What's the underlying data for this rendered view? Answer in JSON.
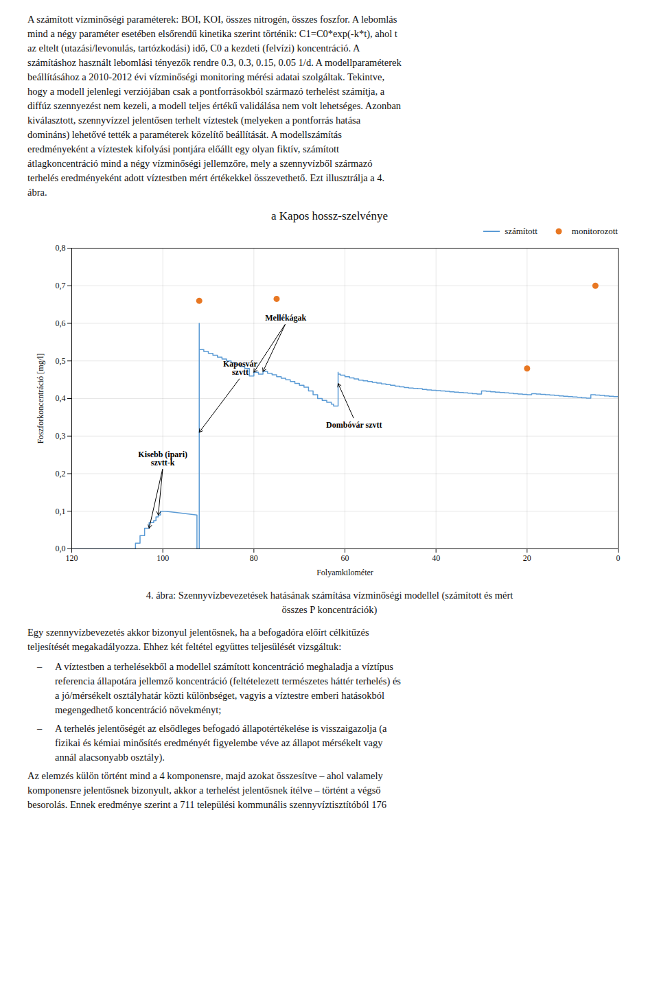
{
  "chart_data": {
    "type": "line",
    "title": "a Kapos hossz-szelvénye",
    "xlabel": "Folyamkilométer",
    "ylabel": "Foszforkoncentráció [mg/l]",
    "xlim": [
      120,
      0
    ],
    "ylim": [
      0,
      0.8
    ],
    "xticks": [
      120,
      100,
      80,
      60,
      40,
      20,
      0
    ],
    "yticks": [
      {
        "value": 0,
        "label": "0,0"
      },
      {
        "value": 0.1,
        "label": "0,1"
      },
      {
        "value": 0.2,
        "label": "0,2"
      },
      {
        "value": 0.3,
        "label": "0,3"
      },
      {
        "value": 0.4,
        "label": "0,4"
      },
      {
        "value": 0.5,
        "label": "0,5"
      },
      {
        "value": 0.6,
        "label": "0,6"
      },
      {
        "value": 0.7,
        "label": "0,7"
      },
      {
        "value": 0.8,
        "label": "0,8"
      }
    ],
    "grid": true,
    "legend": "upper right",
    "series": [
      {
        "name": "számított",
        "type": "line",
        "color": "#5B9BD5",
        "x": [
          120,
          106,
          106,
          105,
          105,
          104,
          104,
          103,
          103,
          102,
          102,
          101.5,
          101.5,
          101,
          101,
          100.5,
          100.5,
          100,
          99.5,
          92.5,
          92.5,
          92,
          92,
          92,
          91,
          91,
          90,
          90,
          89,
          89,
          88,
          88,
          87,
          87,
          86,
          86,
          85,
          85,
          84,
          84,
          83,
          83,
          82,
          82,
          81,
          81,
          80,
          80,
          79,
          79,
          78,
          78,
          77,
          77,
          76,
          76,
          75,
          75,
          74,
          74,
          73,
          73,
          72,
          72,
          71,
          71,
          70,
          70,
          69,
          69,
          68,
          68,
          67,
          67,
          66,
          66,
          65,
          65,
          64,
          64,
          63,
          63,
          62.5,
          62.5,
          62,
          61.5,
          61.5,
          61.5,
          61,
          61,
          60,
          60,
          59,
          59,
          58,
          58,
          57,
          57,
          56,
          56,
          55,
          55,
          54,
          54,
          53,
          53,
          52,
          52,
          51,
          51,
          50,
          50,
          49,
          49,
          48,
          48,
          47,
          47,
          46,
          46,
          45,
          45,
          44,
          44,
          43,
          43,
          42,
          42,
          41,
          41,
          40,
          40,
          39,
          39,
          38,
          38,
          37,
          37,
          36,
          36,
          35,
          35,
          34,
          34,
          33,
          33,
          32,
          32,
          31,
          31,
          30,
          30,
          29,
          29,
          28,
          28,
          27,
          27,
          26,
          26,
          25,
          25,
          24,
          24,
          23,
          23,
          22,
          22,
          21,
          21,
          20,
          20,
          19,
          19,
          18,
          18,
          17,
          17,
          16,
          16,
          15,
          15,
          14,
          14,
          13,
          13,
          12,
          12,
          11,
          11,
          10,
          10,
          9,
          9,
          8,
          8,
          7,
          7,
          6,
          6,
          5,
          5,
          4,
          4,
          3,
          3,
          2,
          2,
          1,
          1,
          0
        ],
        "values": [
          0,
          0,
          0.015,
          0.015,
          0.035,
          0.035,
          0.055,
          0.055,
          0.07,
          0.07,
          0.075,
          0.075,
          0.085,
          0.085,
          0.09,
          0.09,
          0.1,
          0.1,
          0.1,
          0.09,
          0,
          0,
          0.6,
          0.53,
          0.53,
          0.525,
          0.525,
          0.52,
          0.52,
          0.515,
          0.515,
          0.51,
          0.51,
          0.505,
          0.505,
          0.5,
          0.5,
          0.495,
          0.495,
          0.49,
          0.49,
          0.485,
          0.485,
          0.48,
          0.48,
          0.46,
          0.46,
          0.47,
          0.47,
          0.465,
          0.465,
          0.472,
          0.472,
          0.467,
          0.467,
          0.463,
          0.463,
          0.458,
          0.458,
          0.454,
          0.454,
          0.45,
          0.45,
          0.445,
          0.445,
          0.44,
          0.44,
          0.435,
          0.435,
          0.43,
          0.43,
          0.42,
          0.42,
          0.41,
          0.41,
          0.4,
          0.4,
          0.395,
          0.395,
          0.39,
          0.39,
          0.385,
          0.385,
          0.38,
          0.38,
          0.38,
          0.47,
          0.465,
          0.465,
          0.462,
          0.462,
          0.458,
          0.458,
          0.455,
          0.455,
          0.452,
          0.452,
          0.449,
          0.449,
          0.447,
          0.447,
          0.445,
          0.445,
          0.443,
          0.443,
          0.441,
          0.441,
          0.439,
          0.439,
          0.437,
          0.437,
          0.435,
          0.435,
          0.433,
          0.433,
          0.431,
          0.431,
          0.429,
          0.429,
          0.428,
          0.428,
          0.427,
          0.427,
          0.426,
          0.426,
          0.424,
          0.424,
          0.423,
          0.423,
          0.422,
          0.422,
          0.421,
          0.421,
          0.42,
          0.42,
          0.419,
          0.419,
          0.418,
          0.418,
          0.417,
          0.417,
          0.416,
          0.416,
          0.415,
          0.415,
          0.414,
          0.414,
          0.413,
          0.413,
          0.412,
          0.412,
          0.42,
          0.42,
          0.419,
          0.419,
          0.418,
          0.418,
          0.417,
          0.417,
          0.416,
          0.416,
          0.415,
          0.415,
          0.414,
          0.414,
          0.413,
          0.413,
          0.412,
          0.412,
          0.411,
          0.411,
          0.41,
          0.41,
          0.413,
          0.413,
          0.412,
          0.412,
          0.411,
          0.411,
          0.41,
          0.41,
          0.409,
          0.409,
          0.408,
          0.408,
          0.407,
          0.407,
          0.406,
          0.406,
          0.405,
          0.405,
          0.404,
          0.404,
          0.403,
          0.403,
          0.402,
          0.402,
          0.401,
          0.401,
          0.41,
          0.41,
          0.409,
          0.409,
          0.408,
          0.408,
          0.407,
          0.407,
          0.406,
          0.406,
          0.405,
          0.405
        ]
      },
      {
        "name": "monitorozott",
        "type": "scatter",
        "color": "#E87722",
        "x": [
          92,
          75,
          20,
          5
        ],
        "values": [
          0.66,
          0.665,
          0.48,
          0.7
        ]
      }
    ],
    "annotations": [
      {
        "text": "Kaposvár\nszvtt",
        "text_x": 83,
        "text_y": 0.455,
        "arrows": [
          {
            "x": 92,
            "y": 0.31
          }
        ]
      },
      {
        "text": "Kisebb (ipari)\nszvtt-k",
        "text_x": 100,
        "text_y": 0.215,
        "arrows": [
          {
            "x": 103,
            "y": 0.055
          },
          {
            "x": 101,
            "y": 0.09
          }
        ]
      },
      {
        "text": "Mellékágak",
        "text_x": 73,
        "text_y": 0.6,
        "arrows": [
          {
            "x": 80,
            "y": 0.47
          },
          {
            "x": 78,
            "y": 0.472
          }
        ]
      },
      {
        "text": "Dombóvár szvtt",
        "text_x": 58,
        "text_y": 0.345,
        "arrows": [
          {
            "x": 61.5,
            "y": 0.44
          }
        ]
      }
    ],
    "text_before": [
      "A számított vízminőségi paraméterek: BOI, KOI, összes nitrogén, összes foszfor. A lebomlás",
      "mind a négy paraméter esetében elsőrendű kinetika szerint történik: C1=C0*exp(-k*t), ahol t",
      "az eltelt (utazási/levonulás, tartózkodási) idő, C0 a kezdeti (felvízi) koncentráció. A",
      "számításhoz használt lebomlási tényezők rendre 0.3, 0.3, 0.15, 0.05 1/d. A modellparaméterek",
      "beállításához a 2010-2012 évi vízminőségi monitoring mérési adatai szolgáltak. Tekintve,",
      "hogy a modell jelenlegi verziójában csak a pontforrásokból származó terhelést számítja, a",
      "diffúz szennyezést nem kezeli, a modell teljes értékű validálása nem volt lehetséges. Azonban",
      "kiválasztott, szennyvízzel jelentősen terhelt víztestek (melyeken a pontforrás hatása",
      "domináns) lehetővé tették a paraméterek közelítő beállítását. A modellszámítás",
      "eredményeként a víztestek kifolyási pontjára előállt egy olyan fiktív, számított",
      "átlagkoncentráció mind a négy vízminőségi jellemzőre, mely a szennyvízből származó",
      "terhelés eredményeként adott víztestben mért értékekkel összevethető. Ezt illusztrálja a 4.",
      "ábra."
    ],
    "caption": [
      "4. ábra: Szennyvízbevezetések hatásának számítása vízminőségi modellel (számított és mért",
      "összes P koncentrációk)"
    ],
    "text_after": [
      {
        "lines": [
          "Egy szennyvízbevezetés akkor bizonyul jelentősnek, ha a befogadóra előírt célkitűzés",
          "teljesítését megakadályozza. Ehhez két feltétel együttes teljesülését vizsgáltuk:"
        ]
      },
      {
        "bullet": "–",
        "lines": [
          "A víztestben a terhelésekből a modellel számított koncentráció meghaladja a víztípus",
          "referencia állapotára jellemző koncentráció (feltételezett természetes háttér terhelés) és",
          "a jó/mérsékelt osztályhatár közti különbséget, vagyis a víztestre emberi hatásokból",
          "megengedhető koncentráció növekményt;"
        ]
      },
      {
        "bullet": "–",
        "lines": [
          "A terhelés jelentőségét az elsődleges befogadó állapotértékelése is visszaigazolja (a",
          "fizikai és kémiai minősítés eredményét figyelembe véve az állapot mérsékelt vagy",
          "annál alacsonyabb osztály)."
        ]
      },
      {
        "lines": [
          "Az elemzés külön történt mind a 4 komponensre, majd azokat összesítve – ahol valamely",
          "komponensre jelentősnek bizonyult, akkor a terhelést jelentősnek ítélve – történt a végső",
          "besorolás. Ennek eredménye szerint a 711 települési kommunális szennyvíztisztítóból 176"
        ]
      }
    ]
  }
}
